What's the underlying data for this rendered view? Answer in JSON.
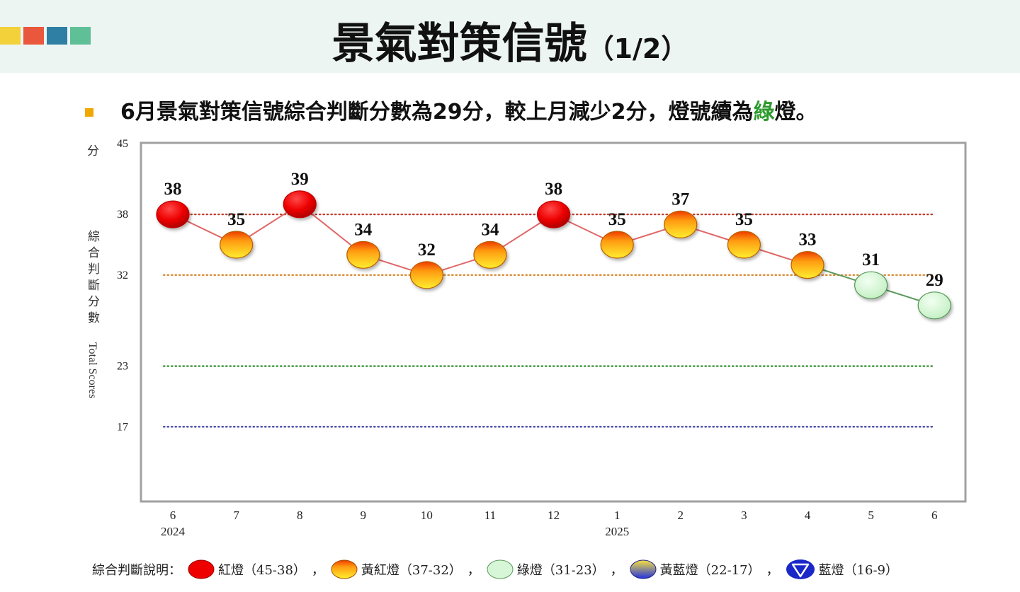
{
  "header": {
    "title": "景氣對策信號",
    "title_sub": "（1/2）",
    "deco_colors": [
      "#f2d13a",
      "#e9583c",
      "#2f7fa4",
      "#5fbf97"
    ]
  },
  "headline": {
    "part1": "6月景氣對策信號綜合判斷分數為29分，較上月減少2分，燈號續為",
    "highlight": "綠",
    "part2": "燈。",
    "highlight_color": "#2e9a2e"
  },
  "chart_data": {
    "type": "line",
    "y_unit": "分",
    "ylabel_zh": [
      "綜",
      "合",
      "判",
      "斷",
      "分",
      "數"
    ],
    "ylabel_en": "Total Scores",
    "ylim": [
      9,
      45
    ],
    "yticks": [
      "45",
      "38",
      "32",
      "23",
      "17"
    ],
    "categories": [
      "6",
      "7",
      "8",
      "9",
      "10",
      "11",
      "12",
      "1",
      "2",
      "3",
      "4",
      "5",
      "6"
    ],
    "year_labels": [
      {
        "index": 0,
        "label": "2024"
      },
      {
        "index": 7,
        "label": "2025"
      }
    ],
    "values": [
      38,
      35,
      39,
      34,
      32,
      34,
      38,
      35,
      37,
      35,
      33,
      31,
      29
    ],
    "signals": [
      "red",
      "yellow-red",
      "red",
      "yellow-red",
      "yellow-red",
      "yellow-red",
      "red",
      "yellow-red",
      "yellow-red",
      "yellow-red",
      "yellow-red",
      "green",
      "green"
    ],
    "threshold_lines": [
      {
        "value": 38,
        "color": "#c0392b"
      },
      {
        "value": 32,
        "color": "#d88a2e"
      },
      {
        "value": 23,
        "color": "#2e8b2e"
      },
      {
        "value": 17,
        "color": "#3a3aa0"
      }
    ],
    "grid": false,
    "legend_placement": "bottom"
  },
  "legend": {
    "label": "綜合判斷說明：",
    "separator": "，",
    "items": [
      {
        "key": "red",
        "text": "紅燈（45-38）"
      },
      {
        "key": "yellow-red",
        "text": "黃紅燈（37-32）"
      },
      {
        "key": "green",
        "text": "綠燈（31-23）"
      },
      {
        "key": "yellow-blue",
        "text": "黃藍燈（22-17）"
      },
      {
        "key": "blue",
        "text": "藍燈（16-9）"
      }
    ]
  },
  "colors": {
    "red_line": "#e06666",
    "green_line": "#5a9a5a",
    "frame": "#a0a0a0"
  }
}
